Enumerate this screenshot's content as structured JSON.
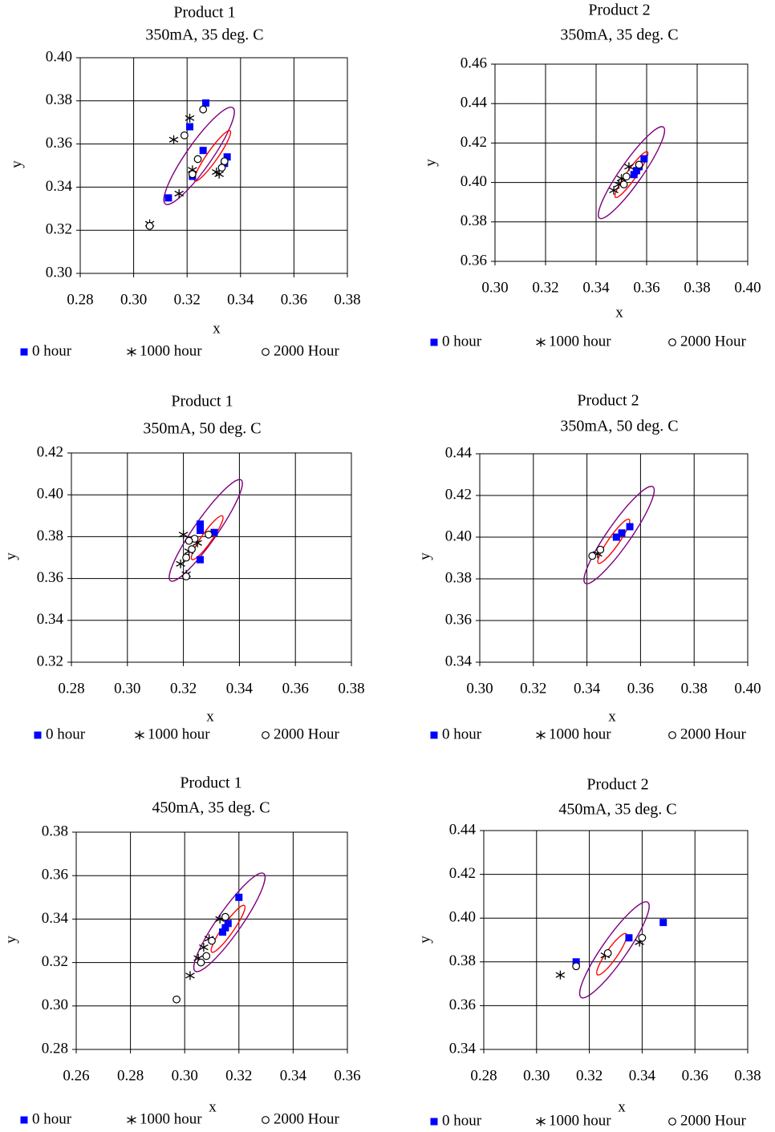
{
  "colors": {
    "zero_hour": "#0000ff",
    "inner_ellipse": "#ff0000",
    "outer_ellipse": "#800080",
    "axis": "#000000",
    "grid": "#000000"
  },
  "legend": {
    "zero": "0 hour",
    "thousand": "1000 hour",
    "two_thousand": "2000 Hour"
  },
  "chart_data": [
    {
      "type": "scatter",
      "title": "Product 1",
      "subtitle": "350mA, 35 deg. C",
      "xlabel": "x",
      "ylabel": "y",
      "xlim": [
        0.28,
        0.38
      ],
      "ylim": [
        0.3,
        0.4
      ],
      "xticks": [
        "0.28",
        "0.30",
        "0.32",
        "0.34",
        "0.36",
        "0.38"
      ],
      "yticks": [
        "0.30",
        "0.32",
        "0.34",
        "0.36",
        "0.38",
        "0.40"
      ],
      "grid": true,
      "legend_position": "bottom",
      "outer_ellipse": {
        "center": [
          0.3245,
          0.3545
        ],
        "rx": 0.022,
        "ry": 0.0058,
        "angle_deg": 55
      },
      "inner_ellipse": {
        "center": [
          0.3295,
          0.3545
        ],
        "rx": 0.0115,
        "ry": 0.0025,
        "angle_deg": 55
      },
      "series": [
        {
          "name": "0 hour",
          "marker": "square",
          "points": [
            [
              0.327,
              0.379
            ],
            [
              0.321,
              0.368
            ],
            [
              0.326,
              0.357
            ],
            [
              0.322,
              0.345
            ],
            [
              0.335,
              0.354
            ],
            [
              0.334,
              0.351
            ],
            [
              0.313,
              0.335
            ]
          ]
        },
        {
          "name": "1000 hour",
          "marker": "star",
          "points": [
            [
              0.321,
              0.372
            ],
            [
              0.315,
              0.362
            ],
            [
              0.322,
              0.348
            ],
            [
              0.331,
              0.347
            ],
            [
              0.332,
              0.346
            ],
            [
              0.317,
              0.337
            ],
            [
              0.306,
              0.323
            ]
          ]
        },
        {
          "name": "2000 Hour",
          "marker": "circle",
          "points": [
            [
              0.326,
              0.376
            ],
            [
              0.319,
              0.364
            ],
            [
              0.324,
              0.353
            ],
            [
              0.322,
              0.346
            ],
            [
              0.334,
              0.352
            ],
            [
              0.333,
              0.349
            ],
            [
              0.306,
              0.322
            ]
          ]
        }
      ]
    },
    {
      "type": "scatter",
      "title": "Product 2",
      "subtitle": "350mA, 35 deg. C",
      "xlabel": "x",
      "ylabel": "y",
      "xlim": [
        0.3,
        0.4
      ],
      "ylim": [
        0.36,
        0.46
      ],
      "xticks": [
        "0.30",
        "0.32",
        "0.34",
        "0.36",
        "0.38",
        "0.40"
      ],
      "yticks": [
        "0.36",
        "0.38",
        "0.40",
        "0.42",
        "0.44",
        "0.46"
      ],
      "grid": true,
      "legend_position": "bottom",
      "outer_ellipse": {
        "center": [
          0.354,
          0.405
        ],
        "rx": 0.022,
        "ry": 0.0055,
        "angle_deg": 55
      },
      "inner_ellipse": {
        "center": [
          0.354,
          0.404
        ],
        "rx": 0.011,
        "ry": 0.0025,
        "angle_deg": 55
      },
      "series": [
        {
          "name": "0 hour",
          "marker": "square",
          "points": [
            [
              0.359,
              0.412
            ],
            [
              0.357,
              0.408
            ],
            [
              0.356,
              0.406
            ],
            [
              0.355,
              0.404
            ]
          ]
        },
        {
          "name": "1000 hour",
          "marker": "star",
          "points": [
            [
              0.353,
              0.408
            ],
            [
              0.35,
              0.402
            ],
            [
              0.349,
              0.399
            ],
            [
              0.347,
              0.396
            ]
          ]
        },
        {
          "name": "2000 Hour",
          "marker": "circle",
          "points": [
            [
              0.357,
              0.409
            ],
            [
              0.352,
              0.403
            ],
            [
              0.351,
              0.399
            ]
          ]
        }
      ]
    },
    {
      "type": "scatter",
      "title": "Product 1",
      "subtitle": "350mA, 50 deg. C",
      "xlabel": "x",
      "ylabel": "y",
      "xlim": [
        0.28,
        0.38
      ],
      "ylim": [
        0.32,
        0.42
      ],
      "xticks": [
        "0.28",
        "0.30",
        "0.32",
        "0.34",
        "0.36",
        "0.38"
      ],
      "yticks": [
        "0.32",
        "0.34",
        "0.36",
        "0.38",
        "0.40",
        "0.42"
      ],
      "grid": true,
      "legend_position": "bottom",
      "outer_ellipse": {
        "center": [
          0.328,
          0.383
        ],
        "rx": 0.022,
        "ry": 0.0055,
        "angle_deg": 55
      },
      "inner_ellipse": {
        "center": [
          0.3285,
          0.3795
        ],
        "rx": 0.0095,
        "ry": 0.0025,
        "angle_deg": 55
      },
      "series": [
        {
          "name": "0 hour",
          "marker": "square",
          "points": [
            [
              0.326,
              0.386
            ],
            [
              0.326,
              0.383
            ],
            [
              0.331,
              0.382
            ],
            [
              0.326,
              0.369
            ]
          ]
        },
        {
          "name": "1000 hour",
          "marker": "star",
          "points": [
            [
              0.32,
              0.381
            ],
            [
              0.325,
              0.377
            ],
            [
              0.322,
              0.373
            ],
            [
              0.319,
              0.367
            ],
            [
              0.321,
              0.362
            ]
          ]
        },
        {
          "name": "2000 Hour",
          "marker": "circle",
          "points": [
            [
              0.329,
              0.381
            ],
            [
              0.324,
              0.379
            ],
            [
              0.322,
              0.378
            ],
            [
              0.323,
              0.374
            ],
            [
              0.321,
              0.37
            ],
            [
              0.321,
              0.361
            ]
          ]
        }
      ]
    },
    {
      "type": "scatter",
      "title": "Product 2",
      "subtitle": "350mA, 50 deg. C",
      "xlabel": "x",
      "ylabel": "y",
      "xlim": [
        0.3,
        0.4
      ],
      "ylim": [
        0.34,
        0.44
      ],
      "xticks": [
        "0.30",
        "0.32",
        "0.34",
        "0.36",
        "0.38",
        "0.40"
      ],
      "yticks": [
        "0.34",
        "0.36",
        "0.38",
        "0.40",
        "0.42",
        "0.44"
      ],
      "grid": true,
      "legend_position": "bottom",
      "outer_ellipse": {
        "center": [
          0.352,
          0.401
        ],
        "rx": 0.022,
        "ry": 0.0055,
        "angle_deg": 55
      },
      "inner_ellipse": {
        "center": [
          0.35,
          0.398
        ],
        "rx": 0.01,
        "ry": 0.0025,
        "angle_deg": 55
      },
      "series": [
        {
          "name": "0 hour",
          "marker": "square",
          "points": [
            [
              0.356,
              0.405
            ],
            [
              0.353,
              0.402
            ],
            [
              0.351,
              0.4
            ]
          ]
        },
        {
          "name": "1000 hour",
          "marker": "star",
          "points": [
            [
              0.344,
              0.392
            ]
          ]
        },
        {
          "name": "2000 Hour",
          "marker": "circle",
          "points": [
            [
              0.345,
              0.394
            ],
            [
              0.342,
              0.391
            ]
          ]
        }
      ]
    },
    {
      "type": "scatter",
      "title": "Product 1",
      "subtitle": "450mA, 35 deg. C",
      "xlabel": "x",
      "ylabel": "y",
      "xlim": [
        0.26,
        0.36
      ],
      "ylim": [
        0.28,
        0.38
      ],
      "xticks": [
        "0.26",
        "0.28",
        "0.30",
        "0.32",
        "0.34",
        "0.36"
      ],
      "yticks": [
        "0.28",
        "0.30",
        "0.32",
        "0.34",
        "0.36",
        "0.38"
      ],
      "grid": true,
      "legend_position": "bottom",
      "outer_ellipse": {
        "center": [
          0.3165,
          0.3385
        ],
        "rx": 0.022,
        "ry": 0.0055,
        "angle_deg": 55
      },
      "inner_ellipse": {
        "center": [
          0.316,
          0.3355
        ],
        "rx": 0.0105,
        "ry": 0.0025,
        "angle_deg": 55
      },
      "series": [
        {
          "name": "0 hour",
          "marker": "square",
          "points": [
            [
              0.32,
              0.35
            ],
            [
              0.316,
              0.338
            ],
            [
              0.315,
              0.336
            ],
            [
              0.314,
              0.334
            ]
          ]
        },
        {
          "name": "1000 hour",
          "marker": "star",
          "points": [
            [
              0.313,
              0.34
            ],
            [
              0.309,
              0.331
            ],
            [
              0.307,
              0.327
            ],
            [
              0.305,
              0.322
            ],
            [
              0.302,
              0.314
            ]
          ]
        },
        {
          "name": "2000 Hour",
          "marker": "circle",
          "points": [
            [
              0.315,
              0.341
            ],
            [
              0.31,
              0.33
            ],
            [
              0.308,
              0.323
            ],
            [
              0.306,
              0.32
            ],
            [
              0.297,
              0.303
            ]
          ]
        }
      ]
    },
    {
      "type": "scatter",
      "title": "Product 2",
      "subtitle": "450mA, 35 deg. C",
      "xlabel": "x",
      "ylabel": "y",
      "xlim": [
        0.28,
        0.38
      ],
      "ylim": [
        0.34,
        0.44
      ],
      "xticks": [
        "0.28",
        "0.30",
        "0.32",
        "0.34",
        "0.36",
        "0.38"
      ],
      "yticks": [
        "0.34",
        "0.36",
        "0.38",
        "0.40",
        "0.42",
        "0.44"
      ],
      "grid": true,
      "legend_position": "bottom",
      "outer_ellipse": {
        "center": [
          0.3295,
          0.3855
        ],
        "rx": 0.022,
        "ry": 0.0055,
        "angle_deg": 55
      },
      "inner_ellipse": {
        "center": [
          0.3285,
          0.3835
        ],
        "rx": 0.0095,
        "ry": 0.0025,
        "angle_deg": 55
      },
      "series": [
        {
          "name": "0 hour",
          "marker": "square",
          "points": [
            [
              0.348,
              0.398
            ],
            [
              0.335,
              0.391
            ],
            [
              0.315,
              0.38
            ]
          ]
        },
        {
          "name": "1000 hour",
          "marker": "star",
          "points": [
            [
              0.339,
              0.389
            ],
            [
              0.326,
              0.383
            ],
            [
              0.309,
              0.374
            ]
          ]
        },
        {
          "name": "2000 Hour",
          "marker": "circle",
          "points": [
            [
              0.34,
              0.391
            ],
            [
              0.327,
              0.384
            ],
            [
              0.315,
              0.378
            ]
          ]
        }
      ]
    }
  ]
}
